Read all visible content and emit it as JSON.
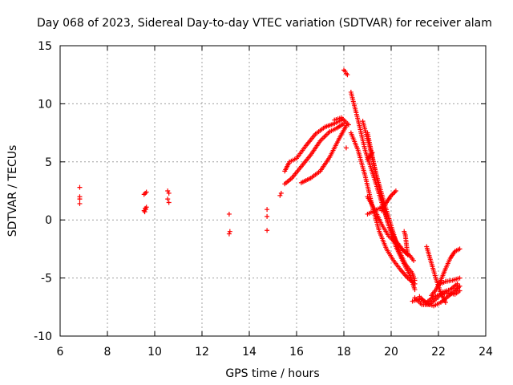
{
  "chart_data": {
    "type": "scatter",
    "title": "Day 068 of 2023, Sidereal Day-to-day VTEC variation (SDTVAR) for receiver alam",
    "xlabel": "GPS time / hours",
    "ylabel": "SDTVAR / TECUs",
    "xlim": [
      6,
      24
    ],
    "ylim": [
      -10,
      15
    ],
    "xticks": [
      6,
      8,
      10,
      12,
      14,
      16,
      18,
      20,
      22,
      24
    ],
    "yticks": [
      -10,
      -5,
      0,
      5,
      10,
      15
    ],
    "grid": true,
    "marker": "+",
    "color": "#ff0000",
    "clusters": [
      {
        "x": [
          6.83,
          6.83,
          6.83,
          6.83
        ],
        "y": [
          2.8,
          2.0,
          1.8,
          1.4
        ]
      },
      {
        "x": [
          9.55,
          9.6,
          9.65,
          9.55,
          9.6,
          9.65,
          9.58,
          9.62
        ],
        "y": [
          2.2,
          2.3,
          2.4,
          0.8,
          1.0,
          1.1,
          0.7,
          0.9
        ]
      },
      {
        "x": [
          10.55,
          10.6,
          10.55,
          10.6
        ],
        "y": [
          2.5,
          2.3,
          1.8,
          1.5
        ]
      },
      {
        "x": [
          13.15,
          13.18,
          13.15
        ],
        "y": [
          0.5,
          -1.0,
          -1.2
        ]
      },
      {
        "x": [
          14.75,
          14.75,
          14.75
        ],
        "y": [
          0.9,
          0.3,
          -0.9
        ]
      },
      {
        "x": [
          15.3,
          15.35
        ],
        "y": [
          2.1,
          2.3
        ]
      },
      {
        "x": [
          18.0,
          18.05,
          18.1,
          18.15
        ],
        "y": [
          12.9,
          12.8,
          12.6,
          12.5
        ]
      },
      {
        "x": [
          18.1
        ],
        "y": [
          6.2
        ]
      }
    ],
    "tracks": [
      {
        "x": [
          15.5,
          15.7,
          16.0,
          16.4,
          16.8,
          17.2,
          17.6,
          17.9
        ],
        "y": [
          4.2,
          5.0,
          5.3,
          6.4,
          7.4,
          8.0,
          8.3,
          8.6
        ]
      },
      {
        "x": [
          15.5,
          15.8,
          16.2,
          16.6,
          17.0,
          17.4,
          17.7,
          18.0
        ],
        "y": [
          3.1,
          3.6,
          4.6,
          5.6,
          6.8,
          7.6,
          7.9,
          8.3
        ]
      },
      {
        "x": [
          16.2,
          16.6,
          17.0,
          17.4,
          17.8,
          18.1
        ],
        "y": [
          3.2,
          3.6,
          4.2,
          5.4,
          7.0,
          8.1
        ]
      },
      {
        "x": [
          17.6,
          17.9,
          18.2
        ],
        "y": [
          8.6,
          8.8,
          8.2
        ]
      },
      {
        "x": [
          18.3,
          18.6,
          18.9,
          19.3,
          19.6,
          19.9,
          20.2,
          20.5,
          20.8,
          21.0
        ],
        "y": [
          11.0,
          8.6,
          6.0,
          3.5,
          1.5,
          -0.5,
          -2.3,
          -3.6,
          -4.8,
          -6.0
        ]
      },
      {
        "x": [
          18.8,
          19.1,
          19.4,
          19.7,
          20.0,
          20.3,
          20.6,
          20.9,
          21.0
        ],
        "y": [
          8.5,
          6.2,
          3.7,
          1.5,
          -0.5,
          -2.5,
          -3.8,
          -4.6,
          -5.2
        ]
      },
      {
        "x": [
          18.3,
          18.6,
          18.9,
          19.2,
          19.5,
          19.8,
          20.1,
          20.4,
          20.7,
          21.0
        ],
        "y": [
          7.5,
          6.0,
          3.8,
          1.2,
          -1.0,
          -2.5,
          -3.5,
          -4.3,
          -5.0,
          -5.5
        ]
      },
      {
        "x": [
          19.0,
          19.3,
          19.6,
          19.9,
          20.2,
          20.5,
          20.8,
          20.95
        ],
        "y": [
          2.0,
          0.9,
          -0.4,
          -1.4,
          -2.0,
          -2.6,
          -3.1,
          -3.5
        ]
      },
      {
        "x": [
          19.0,
          19.3,
          19.6,
          19.9,
          20.2,
          20.5,
          20.7
        ],
        "y": [
          7.5,
          4.5,
          1.8,
          -0.5,
          -1.8,
          -2.6,
          -3.0
        ]
      },
      {
        "x": [
          19.0,
          19.3,
          19.6
        ],
        "y": [
          0.5,
          0.8,
          1.1
        ]
      },
      {
        "x": [
          19.0,
          19.1,
          19.2
        ],
        "y": [
          5.2,
          5.5,
          5.8
        ]
      },
      {
        "x": [
          19.6,
          19.8,
          20.0,
          20.2
        ],
        "y": [
          0.8,
          1.5,
          2.1,
          2.5
        ]
      },
      {
        "x": [
          20.55,
          20.6,
          20.65,
          20.7
        ],
        "y": [
          -1.0,
          -1.3,
          -2.2,
          -3.0
        ]
      },
      {
        "x": [
          20.9,
          21.2,
          21.5,
          21.8,
          22.1,
          22.4,
          22.7,
          22.9
        ],
        "y": [
          -7.0,
          -6.8,
          -7.1,
          -6.6,
          -6.4,
          -6.3,
          -6.4,
          -6.1
        ]
      },
      {
        "x": [
          21.0,
          21.3,
          21.6,
          21.9,
          22.2,
          22.5,
          22.8
        ],
        "y": [
          -6.7,
          -7.3,
          -7.3,
          -6.8,
          -6.2,
          -6.0,
          -5.5
        ]
      },
      {
        "x": [
          21.2,
          21.5,
          21.8,
          22.1,
          22.4,
          22.7,
          22.9
        ],
        "y": [
          -6.6,
          -7.2,
          -7.4,
          -7.1,
          -6.6,
          -6.1,
          -5.7
        ]
      },
      {
        "x": [
          21.5,
          21.7,
          21.9,
          22.1,
          22.3
        ],
        "y": [
          -2.3,
          -3.7,
          -5.1,
          -6.3,
          -7.1
        ]
      },
      {
        "x": [
          21.7,
          21.9,
          22.1,
          22.3,
          22.5,
          22.7,
          22.9
        ],
        "y": [
          -6.5,
          -6.0,
          -5.2,
          -4.2,
          -3.3,
          -2.7,
          -2.5
        ]
      },
      {
        "x": [
          22.0,
          22.3,
          22.6,
          22.9
        ],
        "y": [
          -5.6,
          -5.3,
          -5.2,
          -5.0
        ]
      }
    ]
  }
}
